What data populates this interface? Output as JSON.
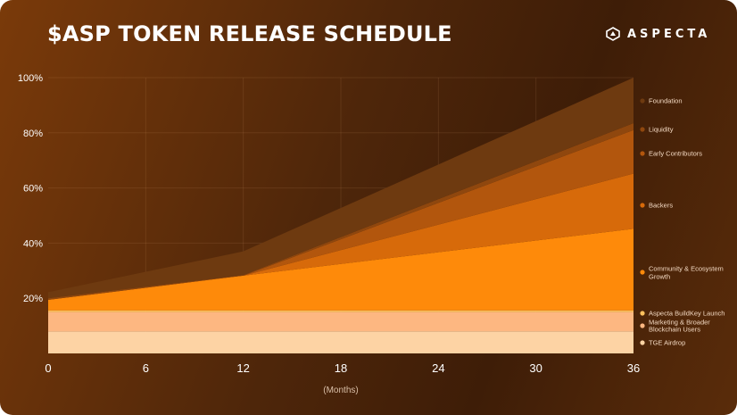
{
  "header": {
    "title": "$ASP TOKEN RELEASE SCHEDULE",
    "brand": "ASPECTA",
    "brand_icon": "aspecta-logo-icon"
  },
  "chart_data": {
    "type": "area",
    "stacked": true,
    "title": "$ASP TOKEN RELEASE SCHEDULE",
    "xlabel": "(Months)",
    "ylabel": "",
    "x": [
      0,
      12,
      36
    ],
    "xticks": [
      0,
      6,
      12,
      18,
      24,
      30,
      36
    ],
    "yticks": [
      "20%",
      "40%",
      "60%",
      "80%",
      "100%"
    ],
    "ytick_values": [
      20,
      40,
      60,
      80,
      100
    ],
    "xlim": [
      0,
      36
    ],
    "ylim": [
      0,
      100
    ],
    "grid": true,
    "legend_position": "right",
    "series": [
      {
        "name": "TGE Airdrop",
        "color": "#fdd3a4",
        "values": [
          8,
          8,
          8
        ]
      },
      {
        "name": "Marketing & Broader Blockchain Users",
        "color": "#fdb781",
        "values": [
          7,
          7,
          7
        ]
      },
      {
        "name": "Aspecta BuildKey Launch",
        "color": "#fec15e",
        "values": [
          0.6,
          0.6,
          0.6
        ]
      },
      {
        "name": "Community & Ecosystem Growth",
        "color": "#fe8a0a",
        "values": [
          3.8,
          12.6,
          29.6
        ]
      },
      {
        "name": "Backers",
        "color": "#d76a0a",
        "values": [
          0,
          0,
          20
        ]
      },
      {
        "name": "Early Contributors",
        "color": "#b2560d",
        "values": [
          0,
          0,
          15.8
        ]
      },
      {
        "name": "Liquidity",
        "color": "#8f470e",
        "values": [
          0.6,
          0.2,
          2.5
        ]
      },
      {
        "name": "Foundation",
        "color": "#6e3a10",
        "values": [
          2.2,
          8.6,
          16.5
        ]
      }
    ],
    "legend": [
      {
        "label": "Foundation",
        "color": "#6e3a10"
      },
      {
        "label": "Liquidity",
        "color": "#8f470e"
      },
      {
        "label": "Early Contributors",
        "color": "#b2560d"
      },
      {
        "label": "Backers",
        "color": "#d76a0a"
      },
      {
        "label": "Community & Ecosystem Growth",
        "color": "#fe8a0a"
      },
      {
        "label": "Aspecta BuildKey Launch",
        "color": "#fec15e"
      },
      {
        "label": "Marketing & Broader Blockchain Users",
        "color": "#fdb781"
      },
      {
        "label": "TGE Airdrop",
        "color": "#fdd3a4"
      }
    ]
  }
}
